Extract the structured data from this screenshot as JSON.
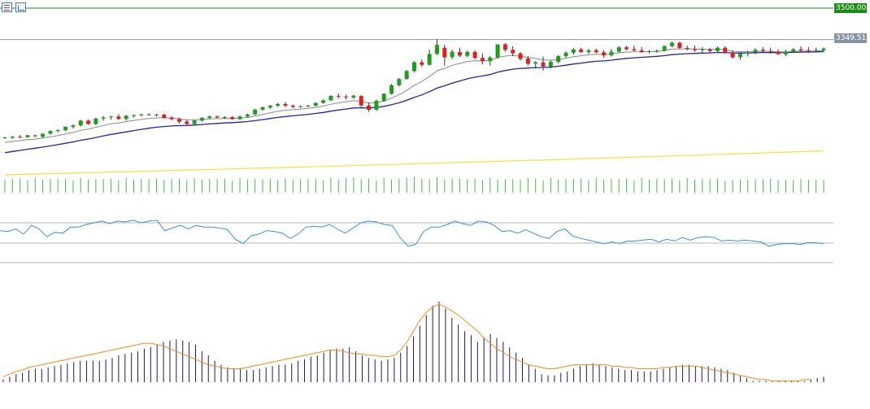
{
  "toolbar": {
    "icons": [
      "list-icon",
      "chart-icon"
    ]
  },
  "price_tags": {
    "resistance": "3500.00",
    "current": "3349.51"
  },
  "colors": {
    "bull": "#1e9e1e",
    "bear": "#e0201c",
    "wick": "#333333",
    "ema_fast": "#8a8a8a",
    "ema_mid": "#1f25a8",
    "ema_slow": "#f5e13a",
    "resistance_line": "#1a8c1a",
    "current_line": "#8894a2",
    "volume": "#3fbf3f",
    "rsi": "#3b8fd8",
    "rsi_level": "#b4b4b4",
    "macd_hist": "#1a1a66",
    "macd_signal": "#f08c14"
  },
  "chart_data": [
    {
      "type": "candlestick",
      "title": "",
      "ylim": [
        2700,
        3500
      ],
      "reference_lines": [
        3500.0,
        3349.51
      ],
      "ohlc": [
        [
          2876,
          2883,
          2873,
          2879
        ],
        [
          2878,
          2886,
          2872,
          2883
        ],
        [
          2883,
          2891,
          2875,
          2880
        ],
        [
          2880,
          2892,
          2878,
          2890
        ],
        [
          2889,
          2893,
          2881,
          2885
        ],
        [
          2882,
          2899,
          2878,
          2897
        ],
        [
          2897,
          2914,
          2893,
          2910
        ],
        [
          2910,
          2918,
          2905,
          2915
        ],
        [
          2914,
          2933,
          2909,
          2930
        ],
        [
          2930,
          2942,
          2922,
          2937
        ],
        [
          2937,
          2964,
          2932,
          2960
        ],
        [
          2960,
          2965,
          2940,
          2944
        ],
        [
          2944,
          2975,
          2938,
          2970
        ],
        [
          2970,
          2982,
          2960,
          2976
        ],
        [
          2976,
          2983,
          2965,
          2980
        ],
        [
          2980,
          2992,
          2964,
          2968
        ],
        [
          2968,
          2987,
          2960,
          2984
        ],
        [
          2984,
          2990,
          2975,
          2986
        ],
        [
          2986,
          2993,
          2980,
          2990
        ],
        [
          2990,
          2996,
          2984,
          2987
        ],
        [
          2987,
          2993,
          2980,
          2989
        ],
        [
          2989,
          2994,
          2970,
          2973
        ],
        [
          2975,
          2982,
          2962,
          2967
        ],
        [
          2967,
          2975,
          2945,
          2955
        ],
        [
          2956,
          2965,
          2940,
          2944
        ],
        [
          2944,
          2964,
          2940,
          2961
        ],
        [
          2960,
          2976,
          2956,
          2974
        ],
        [
          2973,
          2985,
          2968,
          2980
        ],
        [
          2980,
          2985,
          2972,
          2975
        ],
        [
          2976,
          2981,
          2968,
          2977
        ],
        [
          2977,
          2982,
          2965,
          2967
        ],
        [
          2967,
          2984,
          2964,
          2980
        ],
        [
          2980,
          2994,
          2975,
          2990
        ],
        [
          2990,
          3017,
          2986,
          3013
        ],
        [
          3013,
          3028,
          3007,
          3024
        ],
        [
          3023,
          3036,
          3016,
          3032
        ],
        [
          3032,
          3045,
          3025,
          3040
        ],
        [
          3040,
          3049,
          3025,
          3032
        ],
        [
          3032,
          3038,
          3020,
          3026
        ],
        [
          3027,
          3033,
          3021,
          3029
        ],
        [
          3029,
          3036,
          3024,
          3032
        ],
        [
          3032,
          3048,
          3028,
          3045
        ],
        [
          3045,
          3061,
          3041,
          3058
        ],
        [
          3058,
          3082,
          3054,
          3079
        ],
        [
          3079,
          3090,
          3066,
          3076
        ],
        [
          3076,
          3085,
          3062,
          3072
        ],
        [
          3071,
          3084,
          3064,
          3080
        ],
        [
          3078,
          3082,
          3022,
          3033
        ],
        [
          3033,
          3046,
          3002,
          3012
        ],
        [
          3013,
          3060,
          3006,
          3055
        ],
        [
          3055,
          3092,
          3051,
          3089
        ],
        [
          3089,
          3137,
          3085,
          3130
        ],
        [
          3130,
          3166,
          3124,
          3160
        ],
        [
          3160,
          3204,
          3156,
          3198
        ],
        [
          3198,
          3246,
          3192,
          3240
        ],
        [
          3240,
          3254,
          3219,
          3228
        ],
        [
          3228,
          3300,
          3225,
          3280
        ],
        [
          3280,
          3352,
          3275,
          3324
        ],
        [
          3310,
          3325,
          3224,
          3264
        ],
        [
          3265,
          3300,
          3255,
          3291
        ],
        [
          3290,
          3310,
          3265,
          3272
        ],
        [
          3271,
          3296,
          3264,
          3290
        ],
        [
          3290,
          3298,
          3254,
          3261
        ],
        [
          3261,
          3284,
          3230,
          3245
        ],
        [
          3245,
          3270,
          3224,
          3263
        ],
        [
          3263,
          3326,
          3258,
          3326
        ],
        [
          3326,
          3332,
          3290,
          3300
        ],
        [
          3300,
          3318,
          3270,
          3283
        ],
        [
          3283,
          3290,
          3248,
          3256
        ],
        [
          3258,
          3270,
          3224,
          3233
        ],
        [
          3233,
          3245,
          3210,
          3240
        ],
        [
          3240,
          3268,
          3200,
          3220
        ],
        [
          3220,
          3250,
          3210,
          3242
        ],
        [
          3242,
          3275,
          3235,
          3270
        ],
        [
          3270,
          3293,
          3262,
          3286
        ],
        [
          3286,
          3308,
          3276,
          3302
        ],
        [
          3302,
          3310,
          3285,
          3289
        ],
        [
          3289,
          3305,
          3280,
          3298
        ],
        [
          3298,
          3306,
          3283,
          3288
        ],
        [
          3288,
          3297,
          3262,
          3273
        ],
        [
          3273,
          3304,
          3268,
          3291
        ],
        [
          3291,
          3318,
          3286,
          3312
        ],
        [
          3312,
          3319,
          3296,
          3303
        ],
        [
          3303,
          3320,
          3292,
          3297
        ],
        [
          3297,
          3313,
          3286,
          3290
        ],
        [
          3290,
          3300,
          3282,
          3293
        ],
        [
          3293,
          3302,
          3286,
          3296
        ],
        [
          3296,
          3322,
          3292,
          3318
        ],
        [
          3318,
          3340,
          3312,
          3334
        ],
        [
          3334,
          3340,
          3304,
          3309
        ],
        [
          3309,
          3321,
          3296,
          3305
        ],
        [
          3305,
          3320,
          3290,
          3299
        ],
        [
          3299,
          3313,
          3287,
          3302
        ],
        [
          3302,
          3310,
          3286,
          3294
        ],
        [
          3294,
          3315,
          3288,
          3310
        ],
        [
          3310,
          3318,
          3280,
          3285
        ],
        [
          3285,
          3297,
          3258,
          3264
        ],
        [
          3265,
          3288,
          3252,
          3281
        ],
        [
          3281,
          3296,
          3268,
          3288
        ],
        [
          3288,
          3308,
          3278,
          3300
        ],
        [
          3300,
          3313,
          3286,
          3295
        ],
        [
          3295,
          3310,
          3281,
          3291
        ],
        [
          3290,
          3302,
          3276,
          3279
        ],
        [
          3278,
          3300,
          3270,
          3291
        ],
        [
          3291,
          3308,
          3285,
          3303
        ],
        [
          3303,
          3316,
          3288,
          3298
        ],
        [
          3298,
          3313,
          3285,
          3294
        ],
        [
          3294,
          3310,
          3288,
          3298
        ],
        [
          3298,
          3311,
          3289,
          3306
        ]
      ],
      "ema_slow_y": [
        2700,
        2815
      ]
    },
    {
      "type": "bar",
      "title": "",
      "series": [
        {
          "values": [
            85,
            88,
            92,
            80,
            95,
            86,
            90,
            88,
            92,
            80,
            95,
            86,
            90,
            88,
            92,
            80,
            95,
            86,
            90,
            88,
            92,
            84,
            88,
            92,
            80,
            95,
            86,
            90,
            88,
            92,
            80,
            95,
            86,
            90,
            88,
            92,
            80,
            95,
            86,
            90,
            88,
            92,
            80,
            95,
            86,
            96,
            100,
            88,
            92,
            80,
            95,
            86,
            90,
            98,
            104,
            92,
            88,
            100,
            86,
            94,
            90,
            88,
            92,
            80,
            95,
            86,
            90,
            88,
            84,
            96,
            92,
            80,
            95,
            86,
            90,
            88,
            92,
            80,
            95,
            86,
            90,
            88,
            92,
            80,
            95,
            86,
            90,
            88,
            92,
            80,
            95,
            86,
            90,
            88,
            92,
            76,
            82,
            86,
            84,
            88,
            86,
            90,
            82,
            84,
            82,
            88,
            84,
            86,
            84
          ]
        }
      ]
    },
    {
      "type": "line",
      "title": "",
      "ylim": [
        20,
        80
      ],
      "levels": [
        70,
        30
      ],
      "series": [
        {
          "values": [
            56,
            55,
            58,
            52,
            62,
            58,
            49,
            54,
            53,
            60,
            60,
            63,
            65,
            67,
            64,
            67,
            66,
            68,
            65,
            67,
            68,
            56,
            59,
            62,
            58,
            62,
            60,
            60,
            59,
            57,
            46,
            41,
            50,
            52,
            56,
            55,
            53,
            47,
            52,
            60,
            61,
            60,
            63,
            58,
            53,
            59,
            65,
            67,
            66,
            63,
            62,
            48,
            38,
            40,
            55,
            60,
            60,
            63,
            67,
            64,
            62,
            67,
            66,
            62,
            55,
            56,
            53,
            57,
            53,
            49,
            47,
            55,
            58,
            50,
            47,
            45,
            43,
            41,
            43,
            41,
            44,
            44,
            45,
            46,
            43,
            46,
            44,
            48,
            45,
            48,
            49,
            48,
            44,
            45,
            44,
            45,
            44,
            43,
            38,
            40,
            41,
            41,
            40,
            42,
            42,
            41
          ]
        }
      ]
    },
    {
      "type": "bar",
      "title": "",
      "series": [
        {
          "values": [
            2,
            4,
            6,
            7,
            9,
            10,
            10,
            11,
            12,
            13,
            14,
            15,
            16,
            16,
            16,
            16,
            17,
            18,
            20,
            21,
            22,
            23,
            25,
            26,
            28,
            30,
            31,
            32,
            31,
            30,
            28,
            23,
            20,
            16,
            13,
            11,
            10,
            10,
            9,
            9,
            10,
            11,
            12,
            13,
            13,
            14,
            16,
            17,
            19,
            20,
            22,
            24,
            25,
            25,
            26,
            23,
            20,
            18,
            17,
            16,
            17,
            18,
            22,
            27,
            34,
            42,
            50,
            57,
            60,
            55,
            48,
            43,
            38,
            35,
            30,
            33,
            36,
            33,
            30,
            26,
            22,
            18,
            13,
            10,
            6,
            5,
            5,
            7,
            8,
            10,
            12,
            13,
            14,
            13,
            12,
            11,
            10,
            9,
            9,
            8,
            8,
            8,
            9,
            10,
            11,
            12,
            13,
            13,
            12,
            12,
            12,
            11,
            10,
            9,
            7,
            5,
            3,
            1,
            1,
            1,
            1,
            1,
            1,
            1,
            1,
            1,
            2,
            3,
            4
          ]
        },
        {
          "values": [
            4,
            6,
            8,
            9,
            11,
            12,
            13,
            14,
            15,
            16,
            17,
            18,
            19,
            20,
            21,
            22,
            23,
            24,
            25,
            26,
            27,
            28,
            29,
            29,
            28,
            27,
            25,
            23,
            21,
            19,
            17,
            15,
            13,
            12,
            11,
            10,
            10,
            10,
            11,
            12,
            13,
            14,
            15,
            16,
            17,
            18,
            19,
            20,
            21,
            22,
            23,
            24,
            24,
            23,
            22,
            21,
            21,
            20,
            20,
            19,
            19,
            20,
            24,
            30,
            38,
            46,
            52,
            56,
            58,
            56,
            53,
            50,
            46,
            42,
            38,
            33,
            29,
            25,
            22,
            19,
            17,
            15,
            13,
            12,
            11,
            10,
            10,
            11,
            12,
            13,
            13,
            13,
            13,
            13,
            13,
            12,
            12,
            11,
            11,
            10,
            10,
            10,
            10,
            11,
            11,
            12,
            12,
            12,
            12,
            11,
            10,
            9,
            8,
            7,
            6,
            5,
            4,
            3,
            2,
            2,
            1,
            1,
            1,
            1,
            1,
            2,
            2
          ]
        }
      ]
    }
  ]
}
